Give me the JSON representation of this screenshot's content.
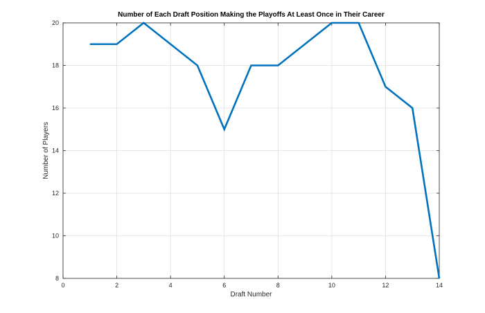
{
  "chart_data": {
    "type": "line",
    "title": "Number of Each Draft Position Making the Playoffs At Least Once in Their Career",
    "xlabel": "Draft Number",
    "ylabel": "Number of Players",
    "xlim": [
      0,
      14
    ],
    "ylim": [
      8,
      20
    ],
    "xticks": [
      0,
      2,
      4,
      6,
      8,
      10,
      12,
      14
    ],
    "yticks": [
      8,
      10,
      12,
      14,
      16,
      18,
      20
    ],
    "grid": true,
    "line_color": "#0072BD",
    "series": [
      {
        "x": [
          1,
          2,
          3,
          4,
          5,
          6,
          7,
          8,
          9,
          10,
          11,
          12,
          13,
          14
        ],
        "y": [
          19,
          19,
          20,
          19,
          18,
          15,
          18,
          18,
          19,
          20,
          20,
          17,
          16,
          8
        ]
      }
    ]
  }
}
